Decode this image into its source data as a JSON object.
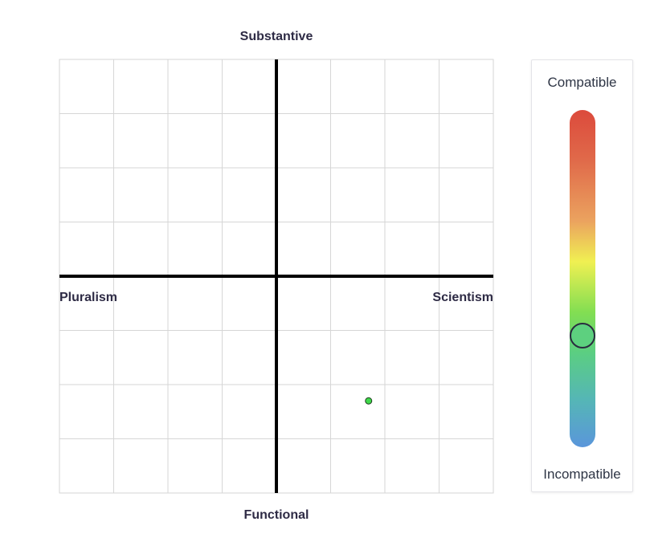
{
  "chart_data": {
    "type": "scatter",
    "xlabel_left": "Pluralism",
    "xlabel_right": "Scientism",
    "ylabel_top": "Substantive",
    "ylabel_bottom": "Functional",
    "xlim": [
      -4,
      4
    ],
    "ylim": [
      -4,
      4
    ],
    "grid": true,
    "points": [
      {
        "x": 1.7,
        "y": -2.3,
        "color": "#3fd94a"
      }
    ]
  },
  "compatibility_scale": {
    "top_label": "Compatible",
    "bottom_label": "Incompatible",
    "level": 0.33,
    "knob_color": "#5dd07f"
  }
}
